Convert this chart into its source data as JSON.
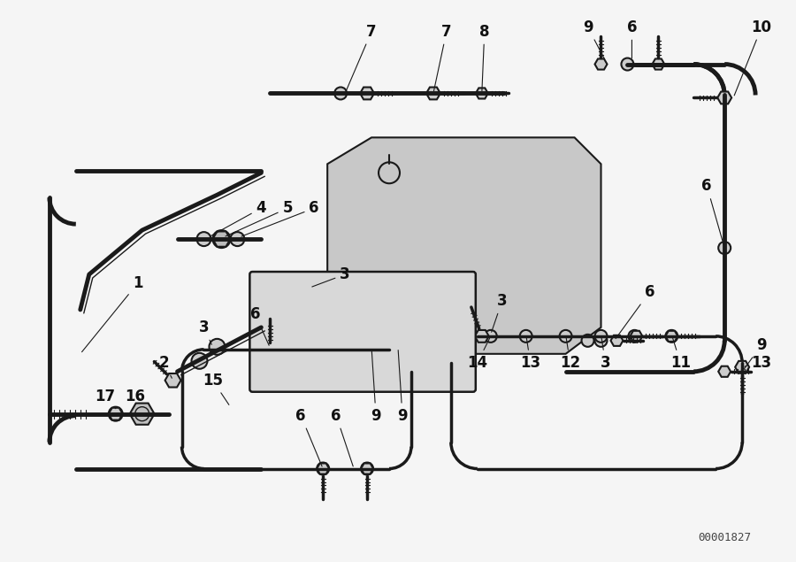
{
  "bg_color": "#f5f5f5",
  "line_color": "#1a1a1a",
  "label_color": "#111111",
  "diagram_id": "00001827",
  "fig_width": 9.0,
  "fig_height": 6.35,
  "dpi": 100,
  "pipe_lw": 3.5,
  "thin_lw": 1.5,
  "label_fs": 11,
  "label_fs_small": 9
}
